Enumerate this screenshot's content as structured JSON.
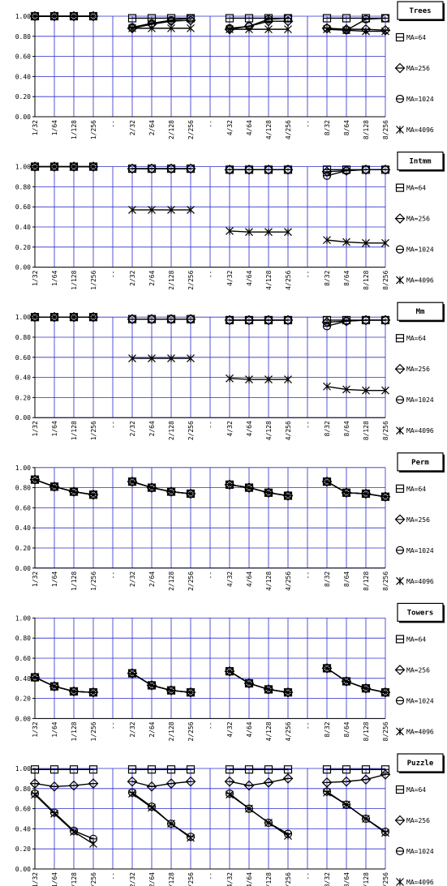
{
  "chart_data": [
    {
      "type": "line",
      "title": "Trees",
      "ylim": [
        0,
        1
      ],
      "yticks": [
        "0.00",
        "0.20",
        "0.40",
        "0.60",
        "0.80",
        "1.00"
      ],
      "categories": [
        "1/32",
        "1/64",
        "1/128",
        "1/256",
        "--",
        "2/32",
        "2/64",
        "2/128",
        "2/256",
        "--",
        "4/32",
        "4/64",
        "4/128",
        "4/256",
        "--",
        "8/32",
        "8/64",
        "8/128",
        "8/256"
      ],
      "grid": true,
      "legend": "right",
      "series": [
        {
          "name": "MA=64",
          "values": [
            1.0,
            1.0,
            1.0,
            1.0,
            null,
            0.98,
            0.98,
            0.98,
            0.98,
            null,
            0.98,
            0.98,
            0.98,
            0.98,
            null,
            0.98,
            0.98,
            0.98,
            0.98
          ]
        },
        {
          "name": "MA=256",
          "values": [
            1.0,
            1.0,
            1.0,
            1.0,
            null,
            0.88,
            0.92,
            0.95,
            0.96,
            null,
            0.87,
            0.9,
            0.95,
            0.95,
            null,
            0.88,
            0.87,
            0.87,
            0.86
          ]
        },
        {
          "name": "MA=1024",
          "values": [
            1.0,
            1.0,
            1.0,
            1.0,
            null,
            0.89,
            0.93,
            0.96,
            0.98,
            null,
            0.88,
            0.9,
            0.97,
            0.98,
            null,
            0.88,
            0.86,
            0.97,
            0.98
          ]
        },
        {
          "name": "MA=4096",
          "values": [
            1.0,
            1.0,
            1.0,
            1.0,
            null,
            0.88,
            0.88,
            0.88,
            0.88,
            null,
            0.87,
            0.87,
            0.87,
            0.87,
            null,
            0.87,
            0.86,
            0.85,
            0.85
          ]
        }
      ]
    },
    {
      "type": "line",
      "title": "Intmm",
      "ylim": [
        0,
        1
      ],
      "yticks": [
        "0.00",
        "0.20",
        "0.40",
        "0.60",
        "0.80",
        "1.00"
      ],
      "categories": [
        "1/32",
        "1/64",
        "1/128",
        "1/256",
        "--",
        "2/32",
        "2/64",
        "2/128",
        "2/256",
        "--",
        "4/32",
        "4/64",
        "4/128",
        "4/256",
        "--",
        "8/32",
        "8/64",
        "8/128",
        "8/256"
      ],
      "grid": true,
      "legend": "right",
      "series": [
        {
          "name": "MA=64",
          "values": [
            1.0,
            1.0,
            1.0,
            1.0,
            null,
            0.98,
            0.98,
            0.98,
            0.98,
            null,
            0.97,
            0.97,
            0.97,
            0.97,
            null,
            0.97,
            0.97,
            0.97,
            0.97
          ]
        },
        {
          "name": "MA=256",
          "values": [
            1.0,
            1.0,
            1.0,
            1.0,
            null,
            0.98,
            0.98,
            0.98,
            0.98,
            null,
            0.97,
            0.97,
            0.97,
            0.97,
            null,
            0.95,
            0.96,
            0.97,
            0.97
          ]
        },
        {
          "name": "MA=1024",
          "values": [
            1.0,
            1.0,
            1.0,
            1.0,
            null,
            0.98,
            0.98,
            0.98,
            0.98,
            null,
            0.97,
            0.97,
            0.97,
            0.97,
            null,
            0.91,
            0.96,
            0.97,
            0.97
          ]
        },
        {
          "name": "MA=4096",
          "values": [
            1.0,
            1.0,
            1.0,
            1.0,
            null,
            0.57,
            0.57,
            0.57,
            0.57,
            null,
            0.36,
            0.35,
            0.35,
            0.35,
            null,
            0.27,
            0.25,
            0.24,
            0.24
          ]
        }
      ]
    },
    {
      "type": "line",
      "title": "Mm",
      "ylim": [
        0,
        1
      ],
      "yticks": [
        "0.00",
        "0.20",
        "0.40",
        "0.60",
        "0.80",
        "1.00"
      ],
      "categories": [
        "1/32",
        "1/64",
        "1/128",
        "1/256",
        "--",
        "2/32",
        "2/64",
        "2/128",
        "2/256",
        "--",
        "4/32",
        "4/64",
        "4/128",
        "4/256",
        "--",
        "8/32",
        "8/64",
        "8/128",
        "8/256"
      ],
      "grid": true,
      "legend": "right",
      "series": [
        {
          "name": "MA=64",
          "values": [
            1.0,
            1.0,
            1.0,
            1.0,
            null,
            0.98,
            0.98,
            0.98,
            0.98,
            null,
            0.97,
            0.97,
            0.97,
            0.97,
            null,
            0.97,
            0.97,
            0.97,
            0.97
          ]
        },
        {
          "name": "MA=256",
          "values": [
            1.0,
            1.0,
            1.0,
            1.0,
            null,
            0.98,
            0.98,
            0.98,
            0.98,
            null,
            0.97,
            0.97,
            0.97,
            0.97,
            null,
            0.95,
            0.96,
            0.97,
            0.97
          ]
        },
        {
          "name": "MA=1024",
          "values": [
            1.0,
            1.0,
            1.0,
            1.0,
            null,
            0.98,
            0.98,
            0.98,
            0.98,
            null,
            0.97,
            0.97,
            0.97,
            0.97,
            null,
            0.91,
            0.96,
            0.97,
            0.97
          ]
        },
        {
          "name": "MA=4096",
          "values": [
            1.0,
            1.0,
            1.0,
            1.0,
            null,
            0.59,
            0.59,
            0.59,
            0.59,
            null,
            0.39,
            0.38,
            0.38,
            0.38,
            null,
            0.31,
            0.28,
            0.27,
            0.27
          ]
        }
      ]
    },
    {
      "type": "line",
      "title": "Perm",
      "ylim": [
        0,
        1
      ],
      "yticks": [
        "0.00",
        "0.20",
        "0.40",
        "0.60",
        "0.80",
        "1.00"
      ],
      "categories": [
        "1/32",
        "1/64",
        "1/128",
        "1/256",
        "--",
        "2/32",
        "2/64",
        "2/128",
        "2/256",
        "--",
        "4/32",
        "4/64",
        "4/128",
        "4/256",
        "--",
        "8/32",
        "8/64",
        "8/128",
        "8/256"
      ],
      "grid": true,
      "legend": "right",
      "series": [
        {
          "name": "MA=64",
          "values": [
            0.88,
            0.81,
            0.76,
            0.73,
            null,
            0.86,
            0.8,
            0.76,
            0.74,
            null,
            0.83,
            0.8,
            0.75,
            0.72,
            null,
            0.86,
            0.75,
            0.74,
            0.71
          ]
        },
        {
          "name": "MA=256",
          "values": [
            0.88,
            0.81,
            0.76,
            0.73,
            null,
            0.86,
            0.8,
            0.76,
            0.74,
            null,
            0.83,
            0.8,
            0.75,
            0.72,
            null,
            0.86,
            0.75,
            0.74,
            0.71
          ]
        },
        {
          "name": "MA=1024",
          "values": [
            0.88,
            0.81,
            0.76,
            0.73,
            null,
            0.86,
            0.8,
            0.76,
            0.74,
            null,
            0.83,
            0.8,
            0.75,
            0.72,
            null,
            0.86,
            0.75,
            0.74,
            0.71
          ]
        },
        {
          "name": "MA=4096",
          "values": [
            0.88,
            0.81,
            0.76,
            0.73,
            null,
            0.86,
            0.8,
            0.76,
            0.74,
            null,
            0.83,
            0.8,
            0.75,
            0.72,
            null,
            0.86,
            0.75,
            0.74,
            0.71
          ]
        }
      ]
    },
    {
      "type": "line",
      "title": "Towers",
      "ylim": [
        0,
        1
      ],
      "yticks": [
        "0.00",
        "0.20",
        "0.40",
        "0.60",
        "0.80",
        "1.00"
      ],
      "categories": [
        "1/32",
        "1/64",
        "1/128",
        "1/256",
        "--",
        "2/32",
        "2/64",
        "2/128",
        "2/256",
        "--",
        "4/32",
        "4/64",
        "4/128",
        "4/256",
        "--",
        "8/32",
        "8/64",
        "8/128",
        "8/256"
      ],
      "grid": true,
      "legend": "right",
      "series": [
        {
          "name": "MA=64",
          "values": [
            0.41,
            0.32,
            0.27,
            0.26,
            null,
            0.45,
            0.33,
            0.28,
            0.26,
            null,
            0.47,
            0.35,
            0.29,
            0.26,
            null,
            0.5,
            0.37,
            0.3,
            0.26
          ]
        },
        {
          "name": "MA=256",
          "values": [
            0.41,
            0.32,
            0.27,
            0.26,
            null,
            0.45,
            0.33,
            0.28,
            0.26,
            null,
            0.47,
            0.35,
            0.29,
            0.26,
            null,
            0.5,
            0.37,
            0.3,
            0.26
          ]
        },
        {
          "name": "MA=1024",
          "values": [
            0.41,
            0.32,
            0.27,
            0.26,
            null,
            0.45,
            0.33,
            0.28,
            0.26,
            null,
            0.47,
            0.35,
            0.29,
            0.26,
            null,
            0.5,
            0.37,
            0.3,
            0.26
          ]
        },
        {
          "name": "MA=4096",
          "values": [
            0.41,
            0.32,
            0.27,
            0.26,
            null,
            0.45,
            0.33,
            0.28,
            0.26,
            null,
            0.47,
            0.35,
            0.29,
            0.26,
            null,
            0.5,
            0.37,
            0.3,
            0.26
          ]
        }
      ]
    },
    {
      "type": "line",
      "title": "Puzzle",
      "ylim": [
        0,
        1
      ],
      "yticks": [
        "0.00",
        "0.20",
        "0.40",
        "0.60",
        "0.80",
        "1.00"
      ],
      "categories": [
        "1/32",
        "1/64",
        "1/128",
        "1/256",
        "--",
        "2/32",
        "2/64",
        "2/128",
        "2/256",
        "--",
        "4/32",
        "4/64",
        "4/128",
        "4/256",
        "--",
        "8/32",
        "8/64",
        "8/128",
        "8/256"
      ],
      "grid": true,
      "legend": "right",
      "series": [
        {
          "name": "MA=64",
          "values": [
            0.99,
            0.99,
            0.99,
            0.99,
            null,
            0.99,
            0.99,
            0.99,
            0.99,
            null,
            0.99,
            0.99,
            0.99,
            0.99,
            null,
            0.99,
            0.99,
            0.99,
            0.99
          ]
        },
        {
          "name": "MA=256",
          "values": [
            0.85,
            0.82,
            0.83,
            0.85,
            null,
            0.87,
            0.82,
            0.85,
            0.87,
            null,
            0.87,
            0.83,
            0.86,
            0.9,
            null,
            0.86,
            0.87,
            0.89,
            0.94
          ]
        },
        {
          "name": "MA=1024",
          "values": [
            0.75,
            0.56,
            0.38,
            0.3,
            null,
            0.76,
            0.62,
            0.45,
            0.32,
            null,
            0.75,
            0.6,
            0.46,
            0.35,
            null,
            0.77,
            0.64,
            0.5,
            0.37
          ]
        },
        {
          "name": "MA=4096",
          "values": [
            0.74,
            0.55,
            0.37,
            0.25,
            null,
            0.75,
            0.61,
            0.45,
            0.31,
            null,
            0.74,
            0.6,
            0.46,
            0.33,
            null,
            0.76,
            0.64,
            0.5,
            0.36
          ]
        }
      ]
    }
  ],
  "colors": {
    "grid": "#2b2bcc",
    "line": "#000000",
    "background": "#ffffff"
  },
  "markers": [
    "square-icon",
    "diamond-icon",
    "circle-icon",
    "cross-icon"
  ]
}
